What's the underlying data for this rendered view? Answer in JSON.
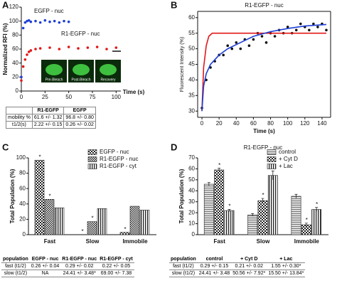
{
  "panels": [
    "A",
    "B",
    "C",
    "D"
  ],
  "chart_data": [
    {
      "type": "line",
      "y_label": "Normalized RFI (%)",
      "x_label": "Time (s)",
      "xlim": [
        0,
        105
      ],
      "xticks": [
        0,
        25,
        50,
        75,
        100
      ],
      "ylim": [
        0,
        120
      ],
      "yticks": [
        0,
        20,
        40,
        60,
        80,
        100,
        120
      ],
      "inset_labels": [
        "Pre-Bleach",
        "Post-Bleach",
        "Recovery"
      ],
      "series": [
        {
          "name": "EGFP - nuc",
          "color": "#1f3fd6",
          "mode": "markers",
          "x": [
            0,
            2,
            4,
            6,
            8,
            10,
            15,
            20,
            25,
            30,
            35,
            40,
            45,
            50
          ],
          "values": [
            20,
            90,
            98,
            100,
            101,
            99,
            100,
            98,
            101,
            99,
            100,
            98,
            100,
            99
          ]
        },
        {
          "name": "R1-EGFP - nuc",
          "color": "#e01818",
          "mode": "markers",
          "x": [
            0,
            2,
            4,
            6,
            8,
            10,
            15,
            20,
            30,
            40,
            50,
            60,
            70,
            80,
            90,
            100
          ],
          "values": [
            15,
            35,
            45,
            52,
            56,
            58,
            60,
            61,
            62,
            60,
            63,
            61,
            62,
            63,
            60,
            62
          ]
        }
      ]
    },
    {
      "type": "line",
      "title": "R1-EGFP - nuc",
      "y_label": "Fluorescent Intensity (%)",
      "x_label": "Time (s)",
      "xlim": [
        -5,
        150
      ],
      "xticks": [
        0,
        20,
        40,
        60,
        80,
        100,
        120,
        140
      ],
      "ylim": [
        28,
        62
      ],
      "yticks": [
        30,
        35,
        40,
        45,
        50,
        55,
        60
      ],
      "series": [
        {
          "color": "#111111",
          "mode": "markers",
          "x": [
            0,
            5,
            10,
            15,
            20,
            25,
            30,
            35,
            40,
            45,
            50,
            55,
            60,
            65,
            70,
            75,
            80,
            85,
            90,
            95,
            100,
            105,
            110,
            115,
            120,
            125,
            130,
            135,
            140,
            145
          ],
          "values": [
            31,
            40,
            44,
            46,
            48,
            48,
            51,
            50,
            52,
            50,
            53,
            51,
            53,
            55,
            54,
            52,
            55,
            54,
            56,
            55,
            57,
            55,
            56,
            58,
            57,
            56,
            58,
            57,
            58,
            56
          ]
        },
        {
          "color": "#e01818",
          "mode": "line",
          "x": [
            0,
            2,
            5,
            8,
            12,
            20,
            40,
            80,
            145
          ],
          "values": [
            30,
            44,
            51,
            54,
            55,
            55,
            55,
            55,
            55
          ]
        },
        {
          "color": "#1f3fd6",
          "mode": "line",
          "x": [
            0,
            2,
            5,
            10,
            20,
            30,
            45,
            60,
            80,
            100,
            120,
            145
          ],
          "values": [
            30,
            38,
            42,
            45,
            48,
            50,
            52,
            54,
            55.5,
            56.5,
            57.3,
            57.8
          ]
        }
      ]
    },
    {
      "type": "bar",
      "y_label": "Total Population (%)",
      "categories": [
        "Fast",
        "Slow",
        "Immobile"
      ],
      "ylim": [
        0,
        100
      ],
      "yticks": [
        0,
        20,
        40,
        60,
        80,
        100
      ],
      "series": [
        {
          "name": "EGFP - nuc",
          "color": "#222222",
          "pattern": "checker",
          "values": [
            97,
            0,
            3
          ],
          "stars": [
            "*",
            "*",
            "*"
          ]
        },
        {
          "name": "R1-EGFP - nuc",
          "color": "#222222",
          "pattern": "dense",
          "values": [
            46,
            17,
            37
          ],
          "stars": [
            "*",
            "*",
            null
          ]
        },
        {
          "name": "R1-EGFP - cyt",
          "color": "#222222",
          "pattern": "hatch",
          "values": [
            35,
            34,
            32
          ]
        }
      ]
    },
    {
      "type": "bar",
      "title": "R1-EGFP - nuc",
      "y_label": "Total Population (%)",
      "categories": [
        "Fast",
        "Slow",
        "Immobile"
      ],
      "ylim": [
        0,
        70
      ],
      "yticks": [
        0,
        10,
        20,
        30,
        40,
        50,
        60,
        70
      ],
      "series": [
        {
          "name": "control",
          "color": "#222222",
          "pattern": "stripe",
          "values": [
            46,
            18,
            35
          ],
          "errors": [
            1.5,
            1.2,
            1.8
          ]
        },
        {
          "name": "+ Cyt D",
          "color": "#222222",
          "pattern": "checker",
          "values": [
            59,
            31,
            9
          ],
          "errors": [
            1.5,
            2,
            1.5
          ],
          "stars": [
            "*",
            "*",
            "*"
          ]
        },
        {
          "name": "+ Lac",
          "color": "#222222",
          "pattern": "hatch",
          "values": [
            22,
            54,
            23
          ],
          "errors": [
            1,
            4,
            1.8
          ],
          "stars": [
            "*",
            "*",
            "*"
          ]
        }
      ]
    }
  ],
  "tables": {
    "a": {
      "header": [
        "R1-EGFP",
        "EGFP"
      ],
      "rows": [
        [
          "mobility %",
          "61.6 +/- 1.32",
          "96.8 +/- 0.80"
        ],
        [
          "t1/2(s)",
          "2.22 +/- 0.15",
          "0.26 +/- 0.02"
        ]
      ]
    },
    "c": {
      "header": [
        "population",
        "EGFP - nuc",
        "R1-EGFP - nuc",
        "R1-EGFP - cyt"
      ],
      "rows": [
        [
          "fast (t1/2)",
          "0.26 +/- 0.04",
          "0.29 +/- 0.02",
          "0.22 +/- 0.05"
        ],
        [
          "slow (t1/2)",
          "NA",
          "24.41 +/- 3.48*",
          "69.00 +/- 7.38"
        ]
      ]
    },
    "d": {
      "header": [
        "population",
        "control",
        "+ Cyt D",
        "+ Lac"
      ],
      "rows": [
        [
          "fast (t1/2)",
          "0.29 +/- 0.15",
          "0.21 +/- 0.02",
          "1.55 +/- 0.30*"
        ],
        [
          "slow (t1/2)",
          "24.41 +/- 3.48",
          "50.56 +/- 7.92*",
          "15.50 +/- 13.84*"
        ]
      ]
    }
  }
}
